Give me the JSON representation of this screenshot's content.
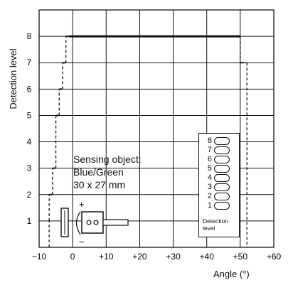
{
  "chart_data": {
    "type": "line",
    "xlabel": "Angle (°)",
    "ylabel": "Detection level",
    "xlim": [
      -10,
      60
    ],
    "ylim": [
      0,
      9
    ],
    "x_ticks": [
      "−10",
      "0",
      "+10",
      "+20",
      "+30",
      "+40",
      "+50",
      "+60"
    ],
    "y_ticks": [
      "1",
      "2",
      "3",
      "4",
      "5",
      "6",
      "7",
      "8"
    ],
    "grid": true,
    "series": [
      {
        "style": "solid",
        "x": [
          -1,
          50
        ],
        "y": [
          8,
          8
        ]
      },
      {
        "style": "dashed",
        "x": [
          -7,
          -7,
          -6,
          -5,
          -4,
          -3,
          -2,
          -1
        ],
        "y": [
          0,
          1,
          2,
          3,
          5,
          6,
          7,
          8
        ]
      },
      {
        "style": "dashed",
        "x": [
          50,
          51,
          52,
          52
        ],
        "y": [
          8,
          7,
          7,
          0
        ]
      }
    ],
    "annotation": [
      "Sensing object:",
      "Blue/Green",
      "30 x 27 mm"
    ],
    "legend": {
      "levels": [
        "8",
        "7",
        "6",
        "5",
        "4",
        "3",
        "2",
        "1"
      ],
      "title": "Detection level",
      "placement": "lower-right"
    },
    "diagram_marks": [
      "+",
      "−"
    ]
  }
}
